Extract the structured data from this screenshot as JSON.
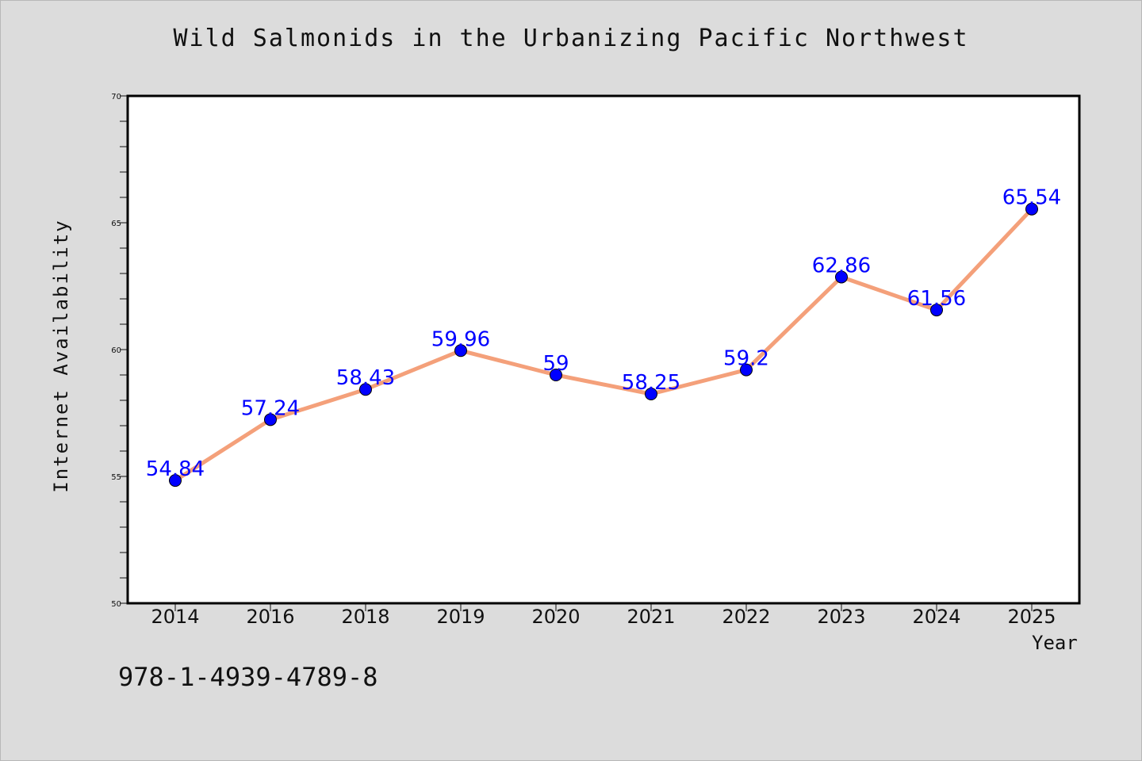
{
  "title": "Wild Salmonids in the Urbanizing Pacific Northwest",
  "footer_text": "978-1-4939-4789-8",
  "colors": {
    "background": "#dcdcdc",
    "plot_area": "#ffffff",
    "line": "#f4a07a",
    "marker": "#0000ff",
    "data_label": "#0000ff"
  },
  "chart_data": {
    "type": "line",
    "title": "Wild Salmonids in the Urbanizing Pacific Northwest",
    "xlabel": "Year",
    "ylabel": "Internet Availability",
    "categories": [
      "2014",
      "2016",
      "2018",
      "2019",
      "2020",
      "2021",
      "2022",
      "2023",
      "2024",
      "2025"
    ],
    "series": [
      {
        "values": [
          54.84,
          57.24,
          58.43,
          59.96,
          59,
          58.25,
          59.2,
          62.86,
          61.56,
          65.54
        ],
        "labels": [
          "54.84",
          "57.24",
          "58.43",
          "59.96",
          "59",
          "58.25",
          "59.2",
          "62.86",
          "61.56",
          "65.54"
        ]
      }
    ],
    "ylim": [
      50,
      70
    ],
    "yticks": [
      "50",
      "55",
      "60",
      "65",
      "70"
    ],
    "y_minor_step": 1,
    "grid": false,
    "legend": "none"
  }
}
